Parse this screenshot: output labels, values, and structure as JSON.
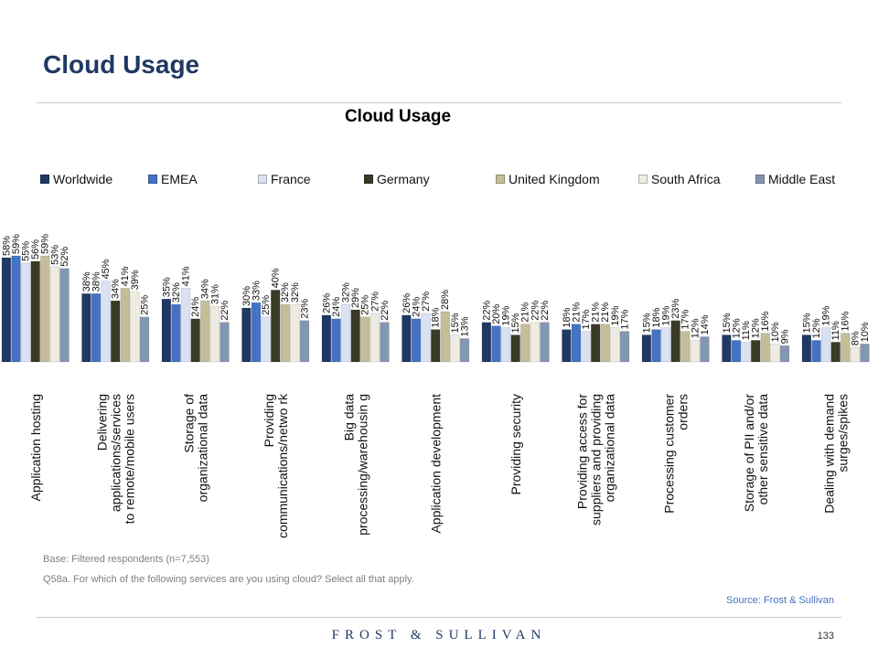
{
  "slide": {
    "title": "Cloud Usage"
  },
  "footer": {
    "base_note": "Base: Filtered respondents (n=7,553)",
    "question_note": "Q58a. For which of the following services are you using cloud? Select all that apply.",
    "source": "Source: Frost & Sullivan",
    "brand": "FROST & SULLIVAN",
    "page_number": "133"
  },
  "chart_data": {
    "type": "bar",
    "title": "Cloud Usage",
    "legend_position": "top",
    "value_format": "percent",
    "ylim": [
      0,
      60
    ],
    "categories": [
      "Application hosting",
      "Delivering applications/services to remote/mobile users",
      "Storage of organizational data",
      "Providing communications/netwo rk",
      "Big data processing/warehousin g",
      "Application development",
      "Providing security",
      "Providing access for suppliers and providing organizational data",
      "Processing customer orders",
      "Storage of PII and/or other sensitive data",
      "Dealing with demand surges/spikes"
    ],
    "series": [
      {
        "name": "Worldwide",
        "color": "#1f3864",
        "values": [
          58,
          38,
          35,
          30,
          26,
          26,
          22,
          18,
          15,
          15,
          15
        ]
      },
      {
        "name": "EMEA",
        "color": "#4472c4",
        "values": [
          59,
          38,
          32,
          33,
          24,
          24,
          20,
          21,
          18,
          12,
          12
        ]
      },
      {
        "name": "France",
        "color": "#d9e1f2",
        "values": [
          55,
          45,
          41,
          25,
          32,
          27,
          19,
          17,
          19,
          11,
          19
        ]
      },
      {
        "name": "Germany",
        "color": "#3a3a26",
        "values": [
          56,
          34,
          24,
          40,
          29,
          18,
          15,
          21,
          23,
          12,
          11
        ]
      },
      {
        "name": "United Kingdom",
        "color": "#c4bd97",
        "values": [
          59,
          41,
          34,
          32,
          25,
          28,
          21,
          21,
          17,
          16,
          16
        ]
      },
      {
        "name": "South Africa",
        "color": "#eeece1",
        "values": [
          53,
          39,
          31,
          32,
          27,
          15,
          22,
          19,
          12,
          10,
          8
        ]
      },
      {
        "name": "Middle East",
        "color": "#8497b0",
        "values": [
          52,
          25,
          22,
          23,
          22,
          13,
          22,
          17,
          14,
          9,
          10
        ]
      }
    ]
  }
}
